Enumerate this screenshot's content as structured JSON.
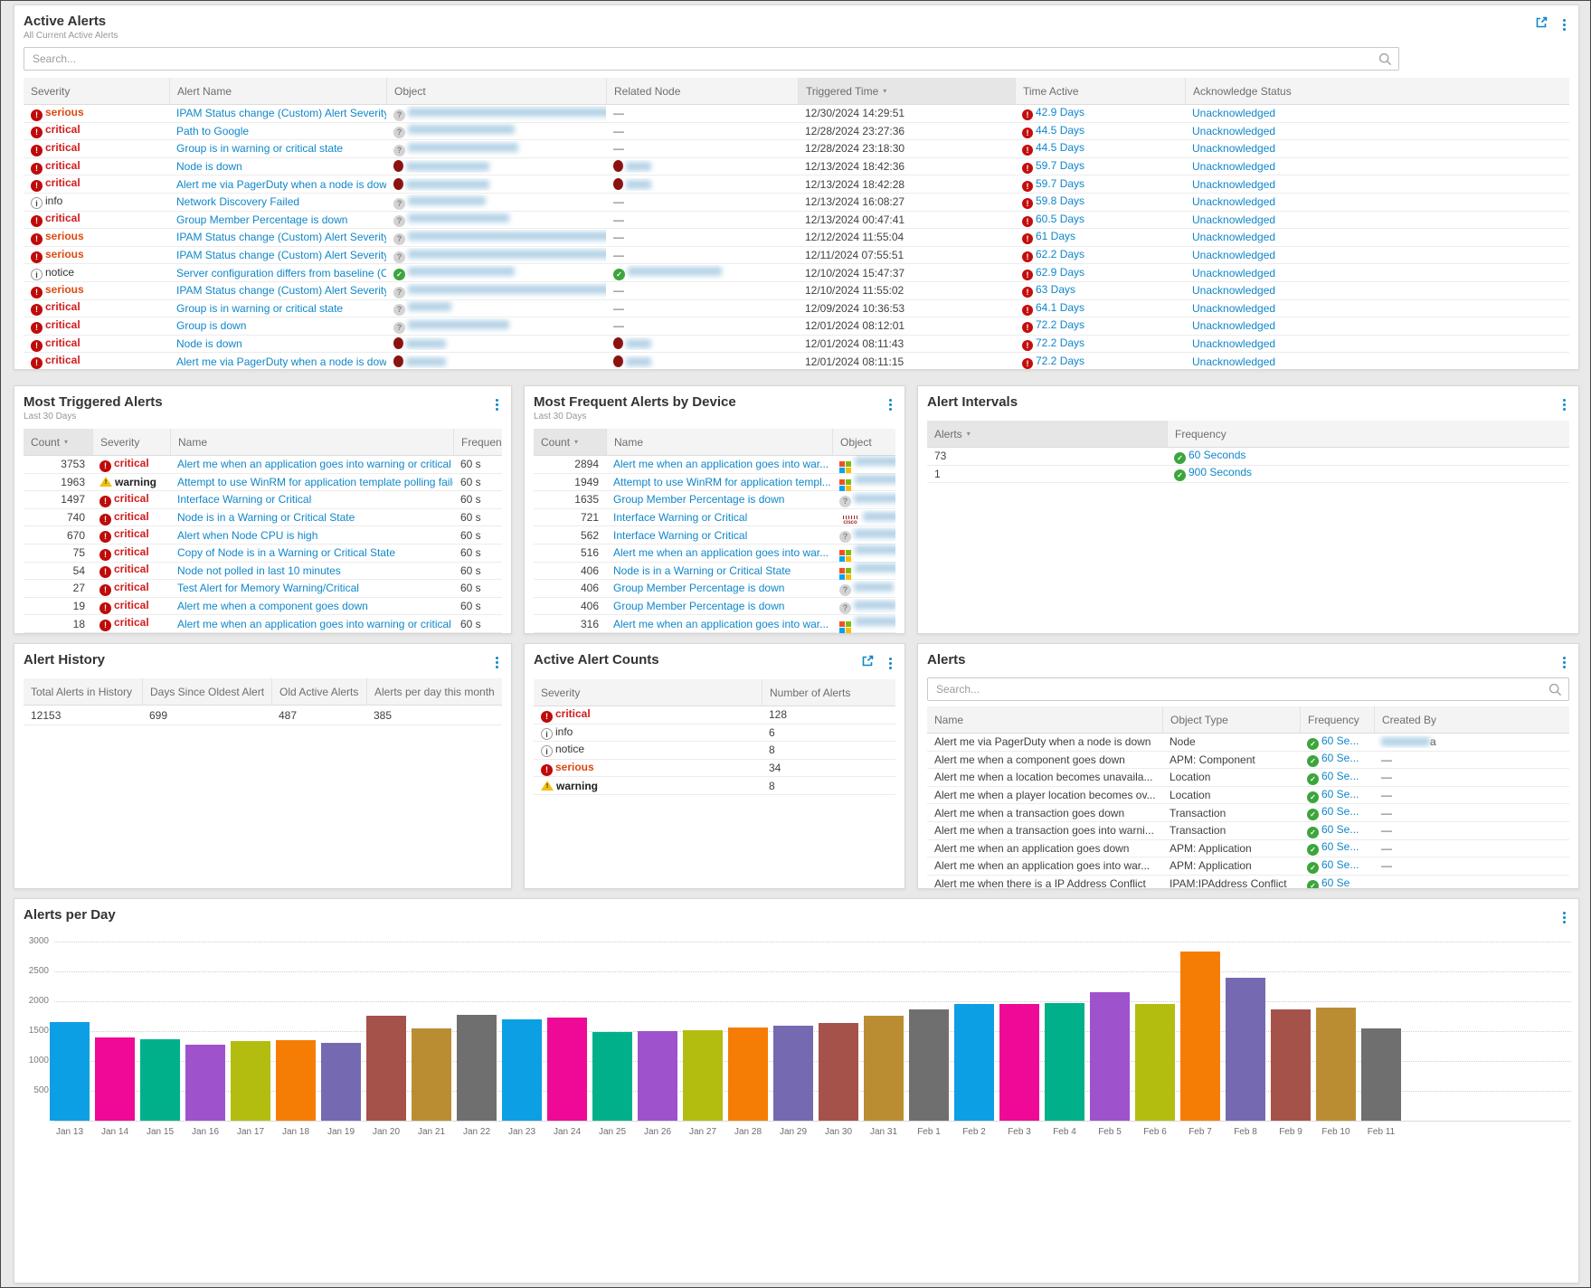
{
  "palette": {
    "link": "#1087c9",
    "critical_text": "#d21c1c",
    "serious_text": "#dd4a12",
    "icon_red": "#bf0a0a",
    "node_down_red": "#8c1111",
    "ok_green": "#3ca53c",
    "warning_yellow": "#f2bf0f"
  },
  "active_alerts": {
    "title": "Active Alerts",
    "subtitle": "All Current Active Alerts",
    "search_placeholder": "Search...",
    "columns": [
      "Severity",
      "Alert Name",
      "Object",
      "Related Node",
      "Triggered Time",
      "Time Active",
      "Acknowledge Status"
    ],
    "sorted_column": "Triggered Time",
    "rows": [
      {
        "severity": "serious",
        "name": "IPAM Status change (Custom) Alert Severity S...",
        "object_icon": "q",
        "object_blur": 235,
        "related": "—",
        "triggered": "12/30/2024 14:29:51",
        "time_active": "42.9 Days",
        "ack": "Unacknowledged"
      },
      {
        "severity": "critical",
        "name": "Path to Google",
        "object_icon": "q",
        "object_blur": 118,
        "related": "—",
        "triggered": "12/28/2024 23:27:36",
        "time_active": "44.5 Days",
        "ack": "Unacknowledged"
      },
      {
        "severity": "critical",
        "name": "Group is in warning or critical state",
        "object_icon": "q",
        "object_blur": 122,
        "related": "—",
        "triggered": "12/28/2024 23:18:30",
        "time_active": "44.5 Days",
        "ack": "Unacknowledged"
      },
      {
        "severity": "critical",
        "name": "Node is down",
        "object_icon": "down",
        "object_blur": 92,
        "related_icon": "down",
        "related_blur": 28,
        "triggered": "12/13/2024 18:42:36",
        "time_active": "59.7 Days",
        "ack": "Unacknowledged"
      },
      {
        "severity": "critical",
        "name": "Alert me via PagerDuty when a node is down",
        "object_icon": "down",
        "object_blur": 92,
        "related_icon": "down",
        "related_blur": 28,
        "triggered": "12/13/2024 18:42:28",
        "time_active": "59.7 Days",
        "ack": "Unacknowledged"
      },
      {
        "severity": "info",
        "name": "Network Discovery Failed",
        "object_icon": "q",
        "object_blur": 86,
        "related": "—",
        "triggered": "12/13/2024 16:08:27",
        "time_active": "59.8 Days",
        "ack": "Unacknowledged"
      },
      {
        "severity": "critical",
        "name": "Group Member Percentage is down",
        "object_icon": "q",
        "object_blur": 112,
        "related": "—",
        "triggered": "12/13/2024 00:47:41",
        "time_active": "60.5 Days",
        "ack": "Unacknowledged"
      },
      {
        "severity": "serious",
        "name": "IPAM Status change (Custom) Alert Severity S...",
        "object_icon": "q",
        "object_blur": 235,
        "related": "—",
        "triggered": "12/12/2024 11:55:04",
        "time_active": "61 Days",
        "ack": "Unacknowledged"
      },
      {
        "severity": "serious",
        "name": "IPAM Status change (Custom) Alert Severity S...",
        "object_icon": "q",
        "object_blur": 235,
        "related": "—",
        "triggered": "12/11/2024 07:55:51",
        "time_active": "62.2 Days",
        "ack": "Unacknowledged"
      },
      {
        "severity": "notice",
        "name": "Server configuration differs from baseline (C...",
        "object_icon": "up",
        "object_blur": 118,
        "related_icon": "up",
        "related_blur": 104,
        "triggered": "12/10/2024 15:47:37",
        "time_active": "62.9 Days",
        "ack": "Unacknowledged"
      },
      {
        "severity": "serious",
        "name": "IPAM Status change (Custom) Alert Severity S...",
        "object_icon": "q",
        "object_blur": 235,
        "related": "—",
        "triggered": "12/10/2024 11:55:02",
        "time_active": "63 Days",
        "ack": "Unacknowledged"
      },
      {
        "severity": "critical",
        "name": "Group is in warning or critical state",
        "object_icon": "q",
        "object_blur": 48,
        "related": "—",
        "triggered": "12/09/2024 10:36:53",
        "time_active": "64.1 Days",
        "ack": "Unacknowledged"
      },
      {
        "severity": "critical",
        "name": "Group is down",
        "object_icon": "q",
        "object_blur": 112,
        "related": "—",
        "triggered": "12/01/2024 08:12:01",
        "time_active": "72.2 Days",
        "ack": "Unacknowledged"
      },
      {
        "severity": "critical",
        "name": "Node is down",
        "object_icon": "down",
        "object_blur": 44,
        "related_icon": "down",
        "related_blur": 28,
        "triggered": "12/01/2024 08:11:43",
        "time_active": "72.2 Days",
        "ack": "Unacknowledged"
      },
      {
        "severity": "critical",
        "name": "Alert me via PagerDuty when a node is down",
        "object_icon": "down",
        "object_blur": 44,
        "related_icon": "down",
        "related_blur": 28,
        "triggered": "12/01/2024 08:11:15",
        "time_active": "72.2 Days",
        "ack": "Unacknowledged"
      },
      {
        "severity": "critical",
        "name": "",
        "clipped": true
      }
    ]
  },
  "most_triggered": {
    "title": "Most Triggered Alerts",
    "subtitle": "Last 30 Days",
    "columns": [
      "Count",
      "Severity",
      "Name",
      "Frequency"
    ],
    "sorted_column": "Count",
    "rows": [
      {
        "count": "3753",
        "severity": "critical",
        "name": "Alert me when an application goes into warning or critical ...",
        "frequency": "60 s"
      },
      {
        "count": "1963",
        "severity": "warning",
        "name": "Attempt to use WinRM for application template polling failed",
        "frequency": "60 s"
      },
      {
        "count": "1497",
        "severity": "critical",
        "name": "Interface Warning or Critical",
        "frequency": "60 s"
      },
      {
        "count": "740",
        "severity": "critical",
        "name": "Node is in a Warning or Critical State",
        "frequency": "60 s"
      },
      {
        "count": "670",
        "severity": "critical",
        "name": "Alert when Node CPU is high",
        "frequency": "60 s"
      },
      {
        "count": "75",
        "severity": "critical",
        "name": "Copy of Node is in a Warning or Critical State",
        "frequency": "60 s"
      },
      {
        "count": "54",
        "severity": "critical",
        "name": "Node not polled in last 10 minutes",
        "frequency": "60 s"
      },
      {
        "count": "27",
        "severity": "critical",
        "name": "Test Alert for Memory Warning/Critical",
        "frequency": "60 s"
      },
      {
        "count": "19",
        "severity": "critical",
        "name": "Alert me when a component goes down",
        "frequency": "60 s"
      },
      {
        "count": "18",
        "severity": "critical",
        "name": "Alert me when an application goes into warning or critical ...",
        "frequency": "60 s",
        "clipped": true
      }
    ]
  },
  "most_frequent": {
    "title": "Most Frequent Alerts by Device",
    "subtitle": "Last 30 Days",
    "columns": [
      "Count",
      "Name",
      "Object"
    ],
    "sorted_column": "Count",
    "rows": [
      {
        "count": "2894",
        "name": "Alert me when an application goes into war...",
        "object_icon": "ms",
        "object_blur": 58
      },
      {
        "count": "1949",
        "name": "Attempt to use WinRM for application templ...",
        "object_icon": "ms",
        "object_blur": 52
      },
      {
        "count": "1635",
        "name": "Group Member Percentage is down",
        "object_icon": "q",
        "object_blur": 54
      },
      {
        "count": "721",
        "name": "Interface Warning or Critical",
        "object_icon": "cisco",
        "object_blur": 48
      },
      {
        "count": "562",
        "name": "Interface Warning or Critical",
        "object_icon": "q",
        "object_blur": 52
      },
      {
        "count": "516",
        "name": "Alert me when an application goes into war...",
        "object_icon": "ms",
        "object_blur": 54
      },
      {
        "count": "406",
        "name": "Node is in a Warning or Critical State",
        "object_icon": "ms",
        "object_blur": 50
      },
      {
        "count": "406",
        "name": "Group Member Percentage is down",
        "object_icon": "q",
        "object_blur": 44
      },
      {
        "count": "406",
        "name": "Group Member Percentage is down",
        "object_icon": "q",
        "object_blur": 48
      },
      {
        "count": "316",
        "name": "Alert me when an application goes into war...",
        "object_icon": "ms",
        "object_blur": 50,
        "clipped": true
      }
    ]
  },
  "alert_intervals": {
    "title": "Alert Intervals",
    "columns": [
      "Alerts",
      "Frequency"
    ],
    "sorted_column": "Alerts",
    "rows": [
      {
        "alerts": "73",
        "frequency": "60 Seconds"
      },
      {
        "alerts": "1",
        "frequency": "900 Seconds"
      }
    ]
  },
  "alert_history": {
    "title": "Alert History",
    "columns": [
      "Total Alerts in History",
      "Days Since Oldest Alert",
      "Old Active Alerts",
      "Alerts per day this month"
    ],
    "values": [
      "12153",
      "699",
      "487",
      "385"
    ]
  },
  "active_alert_counts": {
    "title": "Active Alert Counts",
    "columns": [
      "Severity",
      "Number of Alerts"
    ],
    "rows": [
      {
        "severity": "critical",
        "count": "128"
      },
      {
        "severity": "info",
        "count": "6"
      },
      {
        "severity": "notice",
        "count": "8"
      },
      {
        "severity": "serious",
        "count": "34"
      },
      {
        "severity": "warning",
        "count": "8"
      }
    ]
  },
  "alerts_panel": {
    "title": "Alerts",
    "search_placeholder": "Search...",
    "columns": [
      "Name",
      "Object Type",
      "Frequency",
      "Created By"
    ],
    "rows": [
      {
        "name": "Alert me via PagerDuty when a node is down",
        "type": "Node",
        "frequency": "60 Se...",
        "created_by": "a",
        "created_blur": 54
      },
      {
        "name": "Alert me when a component goes down",
        "type": "APM: Component",
        "frequency": "60 Se...",
        "created_by": "—"
      },
      {
        "name": "Alert me when a location becomes unavaila...",
        "type": "Location",
        "frequency": "60 Se...",
        "created_by": "—"
      },
      {
        "name": "Alert me when a player location becomes ov...",
        "type": "Location",
        "frequency": "60 Se...",
        "created_by": "—"
      },
      {
        "name": "Alert me when a transaction goes down",
        "type": "Transaction",
        "frequency": "60 Se...",
        "created_by": "—"
      },
      {
        "name": "Alert me when a transaction goes into warni...",
        "type": "Transaction",
        "frequency": "60 Se...",
        "created_by": "—"
      },
      {
        "name": "Alert me when an application goes down",
        "type": "APM: Application",
        "frequency": "60 Se...",
        "created_by": "—"
      },
      {
        "name": "Alert me when an application goes into war...",
        "type": "APM: Application",
        "frequency": "60 Se...",
        "created_by": "—"
      },
      {
        "name": "Alert me when there is a IP Address Conflict",
        "type": "IPAM:IPAddress Conflict",
        "frequency": "60 Se",
        "created_by": "",
        "clipped": true
      }
    ]
  },
  "chart_data": {
    "type": "bar",
    "title": "Alerts per Day",
    "xlabel": "",
    "ylabel": "",
    "ylim": [
      0,
      3000
    ],
    "yticks": [
      "500",
      "1000",
      "1500",
      "2000",
      "2500",
      "3000"
    ],
    "grid": true,
    "legend": false,
    "categories": [
      "Jan 13",
      "Jan 14",
      "Jan 15",
      "Jan 16",
      "Jan 17",
      "Jan 18",
      "Jan 19",
      "Jan 20",
      "Jan 21",
      "Jan 22",
      "Jan 23",
      "Jan 24",
      "Jan 25",
      "Jan 26",
      "Jan 27",
      "Jan 28",
      "Jan 29",
      "Jan 30",
      "Jan 31",
      "Feb 1",
      "Feb 2",
      "Feb 3",
      "Feb 4",
      "Feb 5",
      "Feb 6",
      "Feb 7",
      "Feb 8",
      "Feb 9",
      "Feb 10",
      "Feb 11"
    ],
    "values": [
      1650,
      1400,
      1360,
      1280,
      1340,
      1350,
      1310,
      1760,
      1540,
      1770,
      1700,
      1730,
      1490,
      1500,
      1510,
      1560,
      1590,
      1640,
      1760,
      1870,
      1950,
      1960,
      1970,
      2150,
      1950,
      2830,
      2400,
      1860,
      1890,
      1550
    ],
    "bar_color_cycle": [
      "#0d9fe3",
      "#ee0a96",
      "#00b08a",
      "#9e52cc",
      "#b3bd0f",
      "#f57d05",
      "#7569b2",
      "#a5524b",
      "#bb8d32",
      "#6f6f6f"
    ]
  }
}
